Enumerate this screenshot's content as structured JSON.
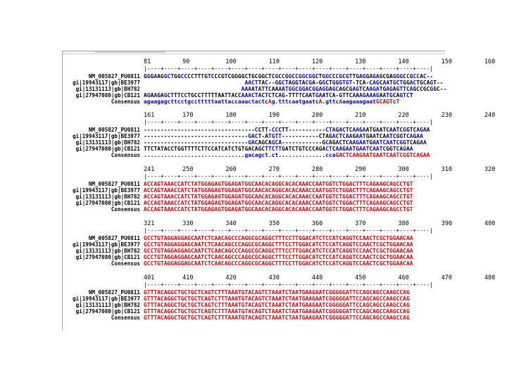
{
  "blocks": [
    {
      "ruler_numbers": [
        "81",
        "90",
        "100",
        "110",
        "120",
        "130",
        "140",
        "150",
        "160"
      ],
      "ruler": "|----+----+----+----+----+----+----+----+----+----+----+----+----+----+----+----+----|",
      "rows": [
        {
          "label": "NM_005827_PU0811",
          "seq": "GGGAAGGCTGGCCCCTTTGTCCCGTCGGGGCTGCGGCTCGCCGGCCGGCGGCTGGCCCGCGTTGAGGAGAGCGAGGGCCGCCAC--"
        },
        {
          "label": "gi|19943117|gb|BE3977",
          "seq": "                              AACTTAC--GGCTAGGTACGA-GGCTGGGTGT-TCA-CAGCAATGCTGGACTGCAGT--"
        },
        {
          "label": "gi|13131113|gb|BH782",
          "seq": "                             AAAATATTCAAAATGGCGGACGGAGGAGCAGCGAGTCAAGATGAGAGTTCAGCCGCGGC--"
        },
        {
          "label": "gi|27947080|gb|CB121",
          "seq": "AGAAGAGCTTTCCTGCCTTTTTAATTACCAAACTACTCTCAG-TTTTCAATGAATCA-GTTCAAAGAAAGAATGCAGTCT"
        },
        {
          "label": "Consensus",
          "seq": "agaagagcttcctgcctttttaattaccaaactactcAg.tttcaatgaatcA.gttcAaagaaagaatGCAGTcT"
        }
      ]
    },
    {
      "ruler_numbers": [
        "161",
        "170",
        "180",
        "190",
        "200",
        "210",
        "220",
        "230",
        "240"
      ],
      "ruler": "|----+----+----+----+----+----+----+----+----+----+----+----+----+----+----+----+----|",
      "rows": [
        {
          "label": "NM_005827_PU0811",
          "seq": "---------------------------------CCTT-CCCTT-----------CTAGACTCAAGAATGAATCAATCGGTCAGAA"
        },
        {
          "label": "gi|19943117|gb|BE3977",
          "seq": "-------------------------------GACT-ATGTT-----------CTAGACTCAAGAATGAATCAATCGGTCAGAA"
        },
        {
          "label": "gi|13131113|gb|BH782",
          "seq": "-------------------------------GACAGCAGCA------------GCAGACTCAAGAATGAATCAATCGGTCAGAA"
        },
        {
          "label": "gi|27947080|gb|CB121",
          "seq": "TTCTATACCTGGTTTTCTTCCATCATCTGTGACAGCTTCTTGATCTGTCCCAGACTCAAGAATGAATCAATCGGTCAGAA"
        },
        {
          "label": "Consensus",
          "seq": "..............................gacagct.ct..............ccaGACTCAAGAATGAATCAATCGGTCAGAA"
        }
      ]
    },
    {
      "ruler_numbers": [
        "241",
        "250",
        "260",
        "270",
        "280",
        "290",
        "300",
        "310",
        "320"
      ],
      "ruler": "|----+----+----+----+----+----+----+----+----+----+----+----+----+----+----+----+----|",
      "rows": [
        {
          "label": "NM_005827_PU0811",
          "seq": "ACCAGTAAACCATCTATGGAGAGTGGAGATGGCAACACAGGCACACAAACCAATGGTCTGGACTTTCAGAAGCAGCCTGT"
        },
        {
          "label": "gi|19943117|gb|BE3977",
          "seq": "ACCAGTAAACCATCTATGGAGAGTGGAGATGGCAACACAGGCACACAAACCAATGGTCTGGACTTTCAGAAGCAGCCTGT"
        },
        {
          "label": "gi|13131113|gb|BH782",
          "seq": "ACCAGTAAACCATCTATGGAGAGTGGAGATGGCAACACAGGCACACAAACCAATGGTCTGGACTTTCAGAAGCAGCCTGT"
        },
        {
          "label": "gi|27947080|gb|CB121",
          "seq": "ACCAGTAAACCATCTATGGAGAGTGGAGATGGCAACACAGGCACACAAACCAATGGTCTGGACTTTCAGAAGCAGCCTGT"
        },
        {
          "label": "Consensus",
          "seq": "ACCAGTAAACCATCTATGGAGAGTGGAGATGGCAACACAGGCACACAAACCAATGGTCTGGACTTTCAGAAGCAGCCTGT"
        }
      ]
    },
    {
      "ruler_numbers": [
        "321",
        "330",
        "340",
        "350",
        "360",
        "370",
        "380",
        "390",
        "400"
      ],
      "ruler": "|----+----+----+----+----+----+----+----+----+----+----+----+----+----+----+----+----|",
      "rows": [
        {
          "label": "NM_005827_PU0811",
          "seq": "GCCTGTAGGAGGAGCAATCTCAACAGCCCAGGCGCAGGCTTTCCTTGGACATCTCCATCAGGTCCAACTCGCTGGAACAA"
        },
        {
          "label": "gi|19943117|gb|BE3977",
          "seq": "GCCTGTAGGAGGAGCAATCTCAACAGCCCAGGCGCAGGCTTTCCTTGGACATCTCCATCAGGTCCAACTCGCTGGAACAA"
        },
        {
          "label": "gi|13131113|gb|BH782",
          "seq": "GCCTGTAGGAGGAGCAATCTCAACAGCCCAGGCGCAGGCTTTCCTTGGACATCTCCATCAGGTCCAACTCGCTGGAACAA"
        },
        {
          "label": "gi|27947080|gb|CB121",
          "seq": "GCCTGTAGGAGGAGCAATCTCAACAGCCCAGGCGCAGGCTTTCCTTGGACATCTCCATCAGGTCCAACTCGCTGGAACAA"
        },
        {
          "label": "Consensus",
          "seq": "GCCTGTAGGAGGAGCAATCTCAACAGCCCAGGCGCAGGCTTTCCTTGGACATCTCCATCAGGTCCAACTCGCTGGAACAA"
        }
      ]
    },
    {
      "ruler_numbers": [
        "401",
        "410",
        "420",
        "430",
        "440",
        "450",
        "460",
        "470",
        "480"
      ],
      "ruler": "|----+----+----+----+----+----+----+----+----+----+----+----+----+----+----+----+----|",
      "rows": [
        {
          "label": "NM_005827_PU0811",
          "seq": "GTTTACAGGCTGCTGCTCAGTCTTTAAATGTACAGTCTAAATCTAATGAAGAATCGGGGGATTCCAGCAGCCAAGCCAG"
        },
        {
          "label": "gi|19943117|gb|BE3977",
          "seq": "GTTTACAGGCTGCTGCTCAGTCTTTAAATGTACAGTCTAAATCTAATGAAGAATCGGGGGATTCCAGCAGCCAAGCCAG"
        },
        {
          "label": "gi|13131113|gb|BH782",
          "seq": "GTTTACAGGCTGCTGCTCAGTCTTTAAATGTACAGTCTAAATCTAATGAAGAATCGGGGGATTCCAGCAGCCAAGCCAG"
        },
        {
          "label": "gi|27947080|gb|CB121",
          "seq": "GTTTACAGGCTGCTGCTCAGTCTTTAAATGTACAGTCTAAATCTAATGAAGAATCGGGGGATTCCAGCAGCCAAGCCAG"
        },
        {
          "label": "Consensus",
          "seq": "GTTTACAGGCTGCTGCTCAGTCTTTAAATGTACAGTCTAAATCTAATGAAGAATCGGGGGATTCCAGCAGCCAAGCCAG"
        }
      ]
    }
  ],
  "colors": {
    "match": "#e00000",
    "partial": "#0000c8",
    "mismatch": "#000000"
  }
}
